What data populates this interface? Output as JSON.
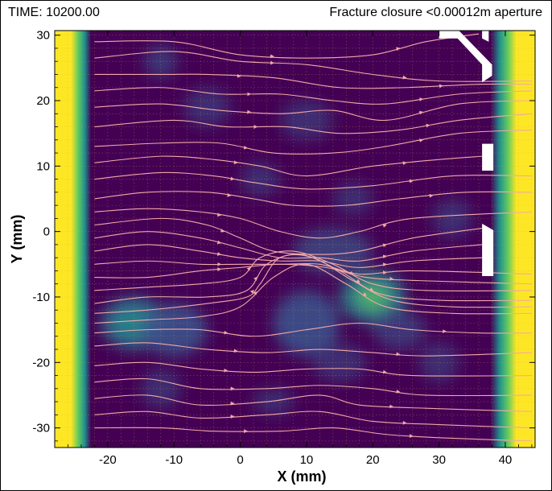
{
  "header": {
    "time_label": "TIME: 10200.00",
    "subtitle": "Fracture closure <0.00012m aperture"
  },
  "chart_data": {
    "type": "contour",
    "xlabel": "X (mm)",
    "ylabel": "Y (mm)",
    "xlim": [
      -28,
      44.5
    ],
    "ylim": [
      -33,
      30.7
    ],
    "xticks": [
      -20,
      -10,
      0,
      10,
      20,
      30,
      40
    ],
    "yticks": [
      -30,
      -20,
      -10,
      0,
      10,
      20,
      30
    ],
    "grid": true,
    "grid_style": "dotted",
    "colors": {
      "background": "#440154",
      "patch": "#3b528b",
      "high": "#21918c",
      "bright": "#5ec962",
      "edge": "#fde725",
      "streamline": "#f4a8a8",
      "closure_mask": "#ffffff"
    },
    "edge_bands": [
      {
        "x_start": -28,
        "x_end": -22.5
      },
      {
        "x_start": 37.8,
        "x_end": 44.5
      }
    ],
    "patches": [
      {
        "x": -12,
        "y": 26,
        "rx": 2.5,
        "ry": 2.5,
        "level": 0.35
      },
      {
        "x": -5,
        "y": 19,
        "rx": 3.5,
        "ry": 3,
        "level": 0.3
      },
      {
        "x": 10,
        "y": 17,
        "rx": 4,
        "ry": 3,
        "level": 0.3
      },
      {
        "x": 3,
        "y": 8,
        "rx": 3,
        "ry": 2.5,
        "level": 0.3
      },
      {
        "x": 17,
        "y": 5,
        "rx": 3,
        "ry": 2.5,
        "level": 0.3
      },
      {
        "x": 14,
        "y": -3,
        "rx": 6,
        "ry": 3.5,
        "level": 0.4
      },
      {
        "x": 20,
        "y": -10,
        "rx": 5,
        "ry": 4,
        "level": 0.85
      },
      {
        "x": 10,
        "y": -14,
        "rx": 5,
        "ry": 5,
        "level": 0.5
      },
      {
        "x": -16,
        "y": -14,
        "rx": 5,
        "ry": 4,
        "level": 0.75
      },
      {
        "x": -10,
        "y": -15,
        "rx": 5,
        "ry": 4,
        "level": 0.5
      },
      {
        "x": 24,
        "y": -15,
        "rx": 4,
        "ry": 3,
        "level": 0.35
      },
      {
        "x": 15,
        "y": -20,
        "rx": 4,
        "ry": 3,
        "level": 0.3
      },
      {
        "x": -12,
        "y": -24,
        "rx": 3,
        "ry": 3,
        "level": 0.3
      },
      {
        "x": 5,
        "y": -26,
        "rx": 3,
        "ry": 2,
        "level": 0.3
      },
      {
        "x": 32,
        "y": 2,
        "rx": 3,
        "ry": 3,
        "level": 0.3
      },
      {
        "x": 30,
        "y": -20,
        "rx": 3,
        "ry": 3,
        "level": 0.3
      }
    ],
    "closure_mask": [
      {
        "points": [
          [
            30,
            30.7
          ],
          [
            33,
            30.7
          ],
          [
            38,
            25.5
          ],
          [
            38,
            23.8
          ],
          [
            36.5,
            22.8
          ],
          [
            36.5,
            25.5
          ],
          [
            32.8,
            29.5
          ],
          [
            30,
            29.5
          ]
        ]
      },
      {
        "points": [
          [
            36.5,
            30.7
          ],
          [
            37.5,
            30.7
          ],
          [
            37.5,
            29.0
          ],
          [
            36.5,
            29.5
          ]
        ]
      },
      {
        "points": [
          [
            36.5,
            13.4
          ],
          [
            38.2,
            13.4
          ],
          [
            38.2,
            9.3
          ],
          [
            36.5,
            9.3
          ]
        ]
      },
      {
        "points": [
          [
            36.5,
            1.2
          ],
          [
            38.2,
            0.2
          ],
          [
            38.2,
            -6.8
          ],
          [
            36.5,
            -6.8
          ]
        ]
      }
    ],
    "streamlines": [
      {
        "points": [
          [
            -22,
            29
          ],
          [
            -10,
            29
          ],
          [
            0,
            27
          ],
          [
            10,
            26.5
          ],
          [
            20,
            27
          ],
          [
            28,
            29
          ],
          [
            36,
            30.2
          ]
        ]
      },
      {
        "points": [
          [
            -22,
            26.5
          ],
          [
            -10,
            27.5
          ],
          [
            0,
            26
          ],
          [
            10,
            25.5
          ],
          [
            20,
            24
          ],
          [
            30,
            23
          ],
          [
            44,
            23
          ]
        ]
      },
      {
        "points": [
          [
            -22,
            24
          ],
          [
            -12,
            24
          ],
          [
            -5,
            24
          ],
          [
            5,
            23.5
          ],
          [
            15,
            22
          ],
          [
            25,
            22
          ],
          [
            36,
            22.5
          ],
          [
            44,
            22.5
          ]
        ]
      },
      {
        "points": [
          [
            -22,
            21.5
          ],
          [
            -12,
            22
          ],
          [
            -3,
            21
          ],
          [
            6,
            21
          ],
          [
            14,
            20
          ],
          [
            22,
            19.5
          ],
          [
            33,
            21
          ],
          [
            44,
            21.5
          ]
        ]
      },
      {
        "points": [
          [
            -22,
            19
          ],
          [
            -12,
            19.5
          ],
          [
            -3,
            18.5
          ],
          [
            6,
            18
          ],
          [
            14,
            18.5
          ],
          [
            22,
            17
          ],
          [
            33,
            19.5
          ],
          [
            44,
            20
          ]
        ]
      },
      {
        "points": [
          [
            -22,
            16
          ],
          [
            -10,
            17
          ],
          [
            -2,
            16
          ],
          [
            7,
            16
          ],
          [
            15,
            15
          ],
          [
            24,
            15.5
          ],
          [
            33,
            17
          ],
          [
            44,
            18
          ]
        ]
      },
      {
        "points": [
          [
            -22,
            13
          ],
          [
            -12,
            13.5
          ],
          [
            -3,
            13.5
          ],
          [
            5,
            12
          ],
          [
            14,
            12
          ],
          [
            22,
            13
          ],
          [
            33,
            15
          ],
          [
            44,
            15.5
          ]
        ]
      },
      {
        "points": [
          [
            -22,
            10.5
          ],
          [
            -12,
            11.5
          ],
          [
            -4,
            11
          ],
          [
            3,
            10
          ],
          [
            10,
            8.5
          ],
          [
            20,
            10
          ],
          [
            30,
            11
          ],
          [
            36.5,
            11.5
          ]
        ]
      },
      {
        "points": [
          [
            -22,
            8
          ],
          [
            -12,
            9
          ],
          [
            -4,
            8.5
          ],
          [
            2,
            7.5
          ],
          [
            10,
            6.5
          ],
          [
            20,
            7
          ],
          [
            32,
            8.5
          ],
          [
            44,
            8.5
          ]
        ]
      },
      {
        "points": [
          [
            -22,
            5
          ],
          [
            -14,
            6
          ],
          [
            -5,
            6
          ],
          [
            2,
            5
          ],
          [
            8,
            4
          ],
          [
            16,
            4
          ],
          [
            24,
            5
          ],
          [
            34,
            6
          ],
          [
            44,
            6
          ]
        ]
      },
      {
        "points": [
          [
            -22,
            3
          ],
          [
            -14,
            3.5
          ],
          [
            -6,
            3
          ],
          [
            0,
            2
          ],
          [
            6,
            0
          ],
          [
            12,
            -1
          ],
          [
            18,
            0
          ],
          [
            26,
            2
          ],
          [
            44,
            3
          ]
        ]
      },
      {
        "points": [
          [
            -22,
            1
          ],
          [
            -12,
            2
          ],
          [
            -5,
            1
          ],
          [
            0,
            -1
          ],
          [
            5,
            -3
          ],
          [
            12,
            -3.5
          ],
          [
            18,
            -3
          ],
          [
            26,
            -1
          ],
          [
            36.5,
            0.5
          ]
        ]
      },
      {
        "points": [
          [
            -22,
            -1
          ],
          [
            -14,
            0
          ],
          [
            -6,
            -1
          ],
          [
            0,
            -2.5
          ],
          [
            6,
            -4
          ],
          [
            12,
            -4
          ],
          [
            18,
            -4.5
          ],
          [
            26,
            -3
          ],
          [
            36.5,
            -2
          ]
        ]
      },
      {
        "points": [
          [
            -22,
            -3
          ],
          [
            -14,
            -2
          ],
          [
            -6,
            -3
          ],
          [
            0,
            -4
          ],
          [
            6,
            -4.5
          ],
          [
            12,
            -4.5
          ],
          [
            18,
            -5.5
          ],
          [
            26,
            -4.5
          ],
          [
            36.5,
            -4
          ]
        ]
      },
      {
        "points": [
          [
            -22,
            -5
          ],
          [
            -14,
            -4.5
          ],
          [
            -6,
            -5
          ],
          [
            0,
            -5
          ],
          [
            6,
            -5
          ],
          [
            12,
            -5
          ],
          [
            18,
            -6.5
          ],
          [
            26,
            -6
          ],
          [
            44,
            -6.5
          ]
        ]
      },
      {
        "points": [
          [
            -22,
            -7
          ],
          [
            -14,
            -7
          ],
          [
            -6,
            -6
          ],
          [
            0,
            -5.5
          ],
          [
            6,
            -5
          ],
          [
            13,
            -5.5
          ],
          [
            19,
            -7
          ],
          [
            27,
            -7.5
          ],
          [
            44,
            -8
          ]
        ]
      },
      {
        "points": [
          [
            -22,
            -9
          ],
          [
            -14,
            -8.5
          ],
          [
            -6,
            -8
          ],
          [
            0,
            -7
          ],
          [
            3,
            -4
          ],
          [
            8,
            -3
          ],
          [
            14,
            -5
          ],
          [
            20,
            -8
          ],
          [
            28,
            -9
          ],
          [
            44,
            -9
          ]
        ]
      },
      {
        "points": [
          [
            -22,
            -11
          ],
          [
            -14,
            -10
          ],
          [
            -5,
            -10
          ],
          [
            1,
            -9
          ],
          [
            4,
            -5
          ],
          [
            9,
            -3.5
          ],
          [
            15,
            -6
          ],
          [
            21,
            -9.5
          ],
          [
            30,
            -10.5
          ],
          [
            44,
            -10.5
          ]
        ]
      },
      {
        "points": [
          [
            -22,
            -12.5
          ],
          [
            -14,
            -12
          ],
          [
            -5,
            -11
          ],
          [
            1,
            -10
          ],
          [
            3,
            -8
          ],
          [
            6,
            -4
          ],
          [
            11,
            -4
          ],
          [
            17,
            -7.5
          ],
          [
            23,
            -10.5
          ],
          [
            32,
            -11.5
          ],
          [
            44,
            -11.5
          ]
        ]
      },
      {
        "points": [
          [
            -22,
            -14
          ],
          [
            -14,
            -13.5
          ],
          [
            -6,
            -13
          ],
          [
            0,
            -11.5
          ],
          [
            5,
            -7
          ],
          [
            10,
            -5
          ],
          [
            16,
            -8
          ],
          [
            22,
            -11.5
          ],
          [
            32,
            -12.5
          ],
          [
            44,
            -12.5
          ]
        ]
      },
      {
        "points": [
          [
            -22,
            -15.5
          ],
          [
            -14,
            -15
          ],
          [
            -6,
            -15
          ],
          [
            2,
            -16
          ],
          [
            10,
            -15
          ],
          [
            18,
            -14
          ],
          [
            26,
            -15
          ],
          [
            36,
            -15.5
          ],
          [
            44,
            -15.5
          ]
        ]
      },
      {
        "points": [
          [
            -22,
            -17.5
          ],
          [
            -14,
            -17
          ],
          [
            -5,
            -18
          ],
          [
            4,
            -18.5
          ],
          [
            12,
            -18
          ],
          [
            20,
            -18.5
          ],
          [
            28,
            -19
          ],
          [
            44,
            -18.5
          ]
        ]
      },
      {
        "points": [
          [
            -22,
            -20.5
          ],
          [
            -14,
            -20
          ],
          [
            -6,
            -21
          ],
          [
            2,
            -21.5
          ],
          [
            10,
            -21
          ],
          [
            18,
            -21
          ],
          [
            26,
            -22
          ],
          [
            44,
            -22
          ]
        ]
      },
      {
        "points": [
          [
            -22,
            -23
          ],
          [
            -14,
            -22.5
          ],
          [
            -6,
            -24
          ],
          [
            4,
            -24
          ],
          [
            12,
            -23.5
          ],
          [
            20,
            -24
          ],
          [
            28,
            -25
          ],
          [
            44,
            -25
          ]
        ]
      },
      {
        "points": [
          [
            -22,
            -25.5
          ],
          [
            -14,
            -25
          ],
          [
            -6,
            -26.5
          ],
          [
            4,
            -26
          ],
          [
            12,
            -25
          ],
          [
            18,
            -26.5
          ],
          [
            28,
            -27
          ],
          [
            44,
            -27.5
          ]
        ]
      },
      {
        "points": [
          [
            -22,
            -28
          ],
          [
            -14,
            -27.5
          ],
          [
            -6,
            -28.5
          ],
          [
            4,
            -28
          ],
          [
            12,
            -27.5
          ],
          [
            20,
            -29
          ],
          [
            30,
            -29.5
          ],
          [
            44,
            -30
          ]
        ]
      },
      {
        "points": [
          [
            -22,
            -30
          ],
          [
            -12,
            -30
          ],
          [
            -4,
            -30.5
          ],
          [
            6,
            -30.5
          ],
          [
            14,
            -30
          ],
          [
            22,
            -31
          ],
          [
            30,
            -31.5
          ],
          [
            44,
            -32
          ]
        ]
      }
    ]
  }
}
